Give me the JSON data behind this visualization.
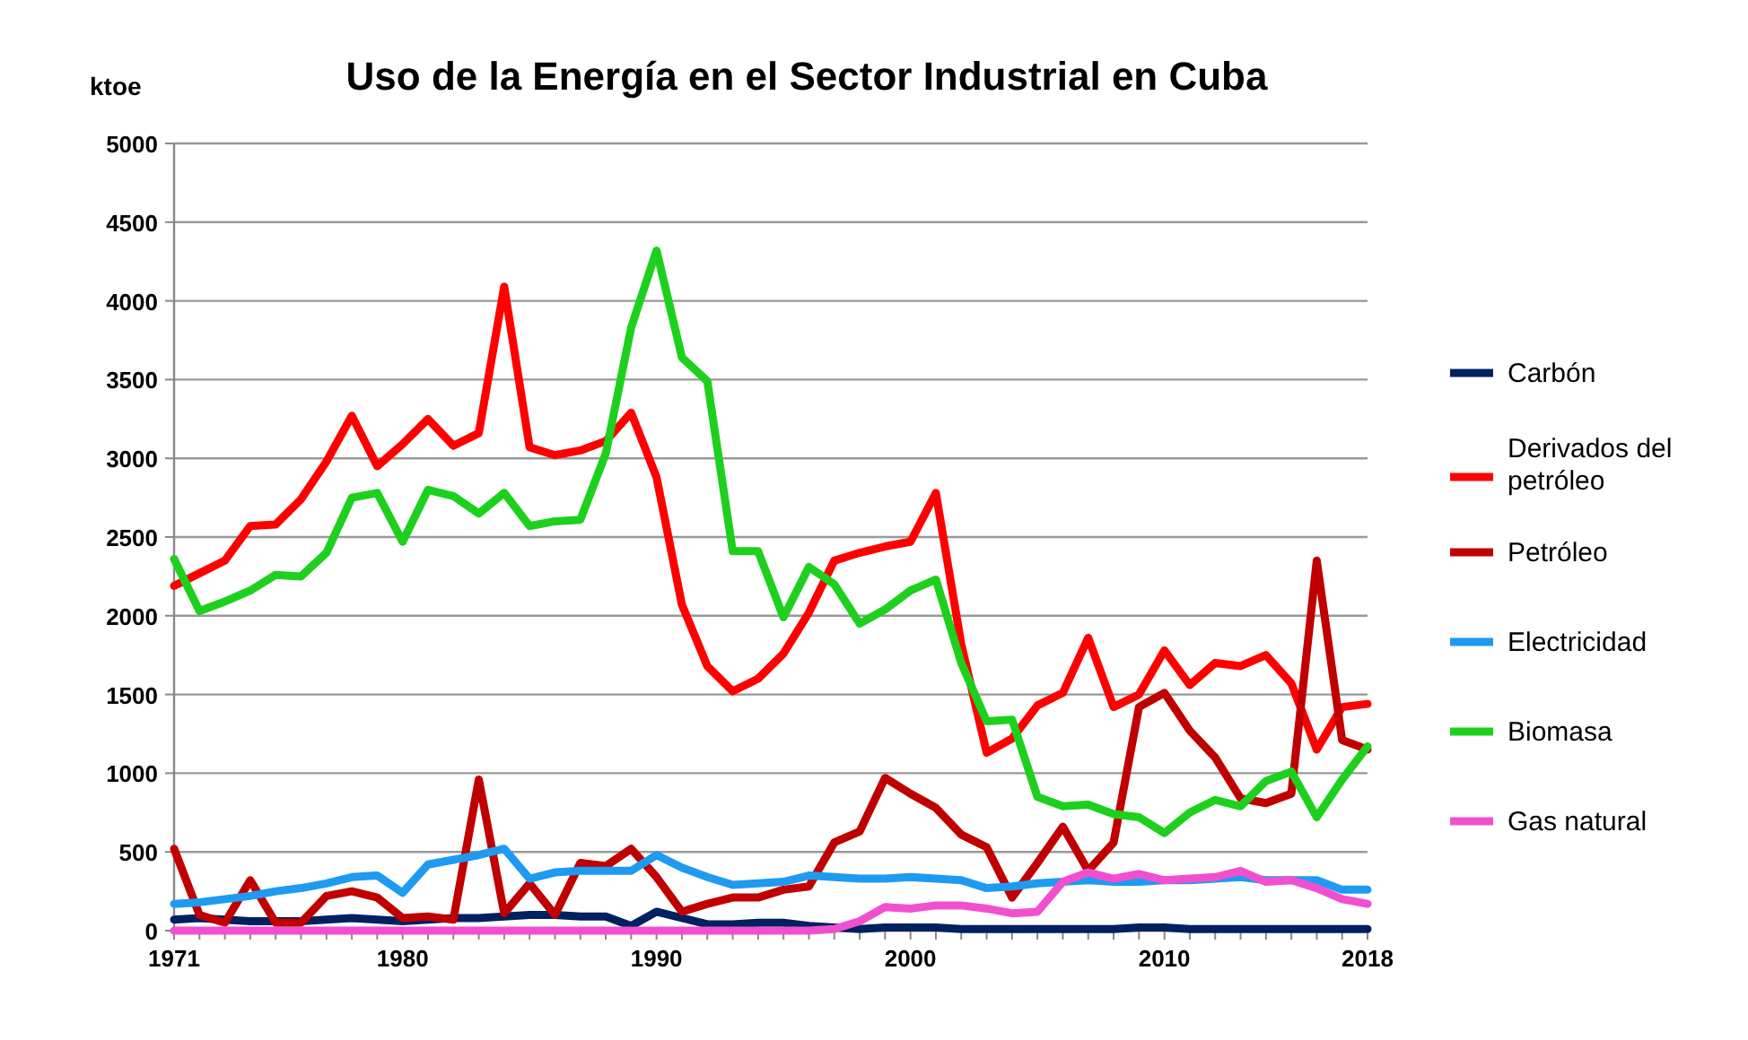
{
  "chart_data": {
    "type": "line",
    "title": "Uso de la Energía en el Sector Industrial en Cuba",
    "ylabel": "ktoe",
    "x": [
      1971,
      1972,
      1973,
      1974,
      1975,
      1976,
      1977,
      1978,
      1979,
      1980,
      1981,
      1982,
      1983,
      1984,
      1985,
      1986,
      1987,
      1988,
      1989,
      1990,
      1991,
      1992,
      1993,
      1994,
      1995,
      1996,
      1997,
      1998,
      1999,
      2000,
      2001,
      2002,
      2003,
      2004,
      2005,
      2006,
      2007,
      2008,
      2009,
      2010,
      2011,
      2012,
      2013,
      2014,
      2015,
      2016,
      2017,
      2018
    ],
    "xlim": [
      1971,
      2018
    ],
    "xticks": [
      1971,
      {
        "value": 1972,
        "label": null
      },
      {
        "value": 1973,
        "label": null
      },
      {
        "value": 1974,
        "label": null
      },
      {
        "value": 1975,
        "label": null
      },
      {
        "value": 1976,
        "label": null
      },
      {
        "value": 1977,
        "label": null
      },
      {
        "value": 1978,
        "label": null
      },
      {
        "value": 1979,
        "label": null
      },
      1980,
      {
        "value": 1981,
        "label": null
      },
      {
        "value": 1982,
        "label": null
      },
      {
        "value": 1983,
        "label": null
      },
      {
        "value": 1984,
        "label": null
      },
      {
        "value": 1985,
        "label": null
      },
      {
        "value": 1986,
        "label": null
      },
      {
        "value": 1987,
        "label": null
      },
      {
        "value": 1988,
        "label": null
      },
      {
        "value": 1989,
        "label": null
      },
      1990,
      {
        "value": 1991,
        "label": null
      },
      {
        "value": 1992,
        "label": null
      },
      {
        "value": 1993,
        "label": null
      },
      {
        "value": 1994,
        "label": null
      },
      {
        "value": 1995,
        "label": null
      },
      {
        "value": 1996,
        "label": null
      },
      {
        "value": 1997,
        "label": null
      },
      {
        "value": 1998,
        "label": null
      },
      {
        "value": 1999,
        "label": null
      },
      2000,
      {
        "value": 2001,
        "label": null
      },
      {
        "value": 2002,
        "label": null
      },
      {
        "value": 2003,
        "label": null
      },
      {
        "value": 2004,
        "label": null
      },
      {
        "value": 2005,
        "label": null
      },
      {
        "value": 2006,
        "label": null
      },
      {
        "value": 2007,
        "label": null
      },
      {
        "value": 2008,
        "label": null
      },
      {
        "value": 2009,
        "label": null
      },
      2010,
      {
        "value": 2011,
        "label": null
      },
      {
        "value": 2012,
        "label": null
      },
      {
        "value": 2013,
        "label": null
      },
      {
        "value": 2014,
        "label": null
      },
      {
        "value": 2015,
        "label": null
      },
      {
        "value": 2016,
        "label": null
      },
      {
        "value": 2017,
        "label": null
      },
      2018
    ],
    "ylim": [
      0,
      5000
    ],
    "yticks": [
      0,
      500,
      1000,
      1500,
      2000,
      2500,
      3000,
      3500,
      4000,
      4500,
      5000
    ],
    "grid": "y",
    "legend": "right",
    "marker": "none",
    "line_style": "solid",
    "series": [
      {
        "name": "Carbón",
        "color": "#002060",
        "values": [
          70,
          80,
          70,
          60,
          60,
          60,
          70,
          80,
          70,
          60,
          70,
          80,
          80,
          90,
          100,
          100,
          90,
          90,
          30,
          120,
          80,
          40,
          40,
          50,
          50,
          30,
          20,
          10,
          20,
          20,
          20,
          10,
          10,
          10,
          10,
          10,
          10,
          10,
          20,
          20,
          10,
          10,
          10,
          10,
          10,
          10,
          10,
          10
        ]
      },
      {
        "name": "Derivados del petróleo",
        "color": "#ff0000",
        "values": [
          2190,
          2270,
          2350,
          2570,
          2580,
          2740,
          2980,
          3270,
          2950,
          3090,
          3250,
          3080,
          3160,
          4090,
          3070,
          3020,
          3050,
          3110,
          3290,
          2880,
          2070,
          1680,
          1520,
          1600,
          1760,
          2020,
          2350,
          2400,
          2440,
          2470,
          2780,
          1820,
          1130,
          1220,
          1430,
          1510,
          1860,
          1420,
          1500,
          1780,
          1560,
          1700,
          1680,
          1750,
          1570,
          1150,
          1420,
          1440
        ]
      },
      {
        "name": "Petróleo",
        "color": "#c00000",
        "values": [
          520,
          100,
          50,
          320,
          50,
          50,
          220,
          250,
          210,
          80,
          90,
          70,
          960,
          110,
          300,
          100,
          430,
          410,
          520,
          340,
          120,
          170,
          210,
          210,
          260,
          280,
          560,
          630,
          970,
          870,
          780,
          610,
          530,
          210,
          430,
          660,
          380,
          560,
          1420,
          1510,
          1270,
          1100,
          840,
          810,
          870,
          2350,
          1210,
          1150
        ]
      },
      {
        "name": "Electricidad",
        "color": "#1e9bf0",
        "values": [
          170,
          180,
          200,
          220,
          250,
          270,
          300,
          340,
          350,
          240,
          420,
          450,
          480,
          520,
          330,
          370,
          380,
          380,
          380,
          480,
          400,
          340,
          290,
          300,
          310,
          350,
          340,
          330,
          330,
          340,
          330,
          320,
          270,
          280,
          300,
          310,
          320,
          310,
          310,
          320,
          320,
          330,
          340,
          320,
          320,
          320,
          260,
          260
        ]
      },
      {
        "name": "Biomasa",
        "color": "#1ed01e",
        "values": [
          2360,
          2030,
          2090,
          2160,
          2260,
          2250,
          2400,
          2750,
          2780,
          2470,
          2800,
          2760,
          2650,
          2780,
          2570,
          2600,
          2610,
          3030,
          3830,
          4320,
          3640,
          3490,
          2410,
          2410,
          1990,
          2310,
          2200,
          1950,
          2040,
          2160,
          2230,
          1700,
          1330,
          1340,
          850,
          790,
          800,
          740,
          720,
          620,
          750,
          830,
          790,
          950,
          1010,
          720,
          960,
          1170
        ]
      },
      {
        "name": "Gas natural",
        "color": "#f050d0",
        "values": [
          0,
          0,
          0,
          0,
          0,
          0,
          0,
          0,
          0,
          0,
          0,
          0,
          0,
          0,
          0,
          0,
          0,
          0,
          0,
          0,
          0,
          0,
          0,
          0,
          0,
          0,
          10,
          60,
          150,
          140,
          160,
          160,
          140,
          110,
          120,
          310,
          370,
          330,
          360,
          320,
          330,
          340,
          380,
          310,
          320,
          270,
          200,
          170
        ]
      }
    ]
  }
}
